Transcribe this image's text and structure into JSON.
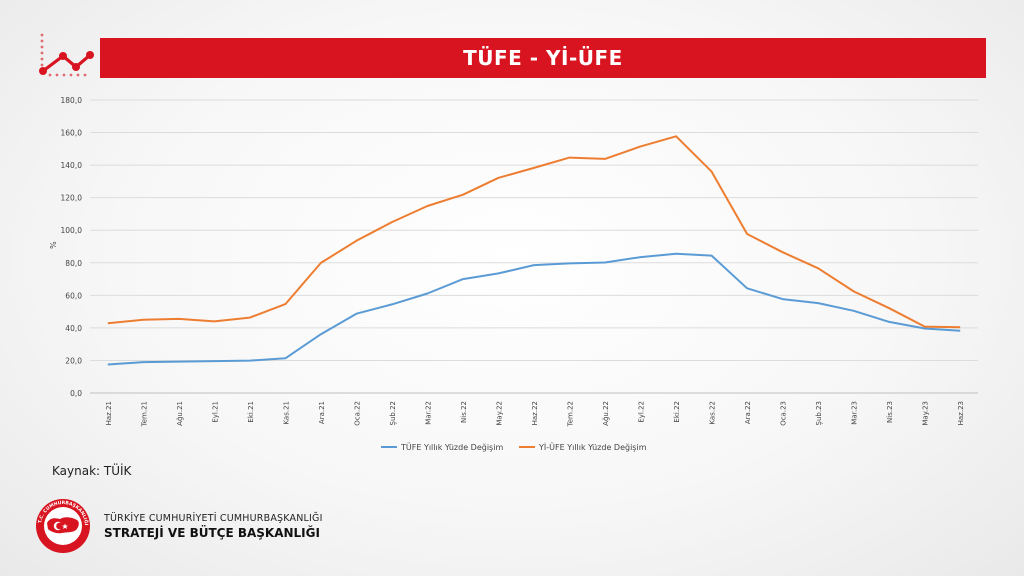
{
  "header": {
    "title": "TÜFE - Yİ-ÜFE"
  },
  "icons": {
    "trend": "trend-line-icon",
    "logo": "ministry-emblem-icon"
  },
  "colors": {
    "brand_red": "#d81421",
    "series1": "#5b9bd5",
    "series2": "#ed7d31"
  },
  "chart_data": {
    "type": "line",
    "ylabel": "%",
    "xlabel": "",
    "ylim": [
      0,
      180
    ],
    "yticks": [
      "0,0",
      "20,0",
      "40,0",
      "60,0",
      "80,0",
      "100,0",
      "120,0",
      "140,0",
      "160,0",
      "180,0"
    ],
    "grid": true,
    "legend": "bottom",
    "x": [
      "Haz.21",
      "Tem.21",
      "Ağu.21",
      "Eyl.21",
      "Eki.21",
      "Kas.21",
      "Ara.21",
      "Oca.22",
      "Şub.22",
      "Mar.22",
      "Nis.22",
      "May.22",
      "Haz.22",
      "Tem.22",
      "Ağu.22",
      "Eyl.22",
      "Eki.22",
      "Kas.22",
      "Ara.22",
      "Oca.23",
      "Şub.23",
      "Mar.23",
      "Nis.23",
      "May.23",
      "Haz.23"
    ],
    "series": [
      {
        "name": "TÜFE Yıllık Yüzde Değişim",
        "color": "#5b9bd5",
        "values": [
          17.5,
          19.0,
          19.3,
          19.6,
          19.9,
          21.3,
          36.1,
          48.7,
          54.4,
          61.1,
          70.0,
          73.5,
          78.6,
          79.6,
          80.2,
          83.5,
          85.5,
          84.4,
          64.3,
          57.7,
          55.2,
          50.5,
          43.7,
          39.6,
          38.2
        ]
      },
      {
        "name": "Yİ-ÜFE Yıllık Yüzde Değişim",
        "color": "#ed7d31",
        "values": [
          42.9,
          45.0,
          45.5,
          44.0,
          46.3,
          54.6,
          79.9,
          93.5,
          105.0,
          114.9,
          121.8,
          132.2,
          138.3,
          144.6,
          143.8,
          151.5,
          157.7,
          136.0,
          97.7,
          86.5,
          76.6,
          62.4,
          52.1,
          40.8,
          40.4
        ]
      }
    ]
  },
  "footer": {
    "source": "Kaynak: TÜİK",
    "org_line1": "TÜRKİYE CUMHURİYETİ CUMHURBAŞKANLIĞI",
    "org_line2": "STRATEJİ VE BÜTÇE BAŞKANLIĞI",
    "logo_ring_text": "T.C. CUMHURBAŞKANLIĞI STRATEJİ VE BÜTÇE BAŞKANLIĞI"
  }
}
